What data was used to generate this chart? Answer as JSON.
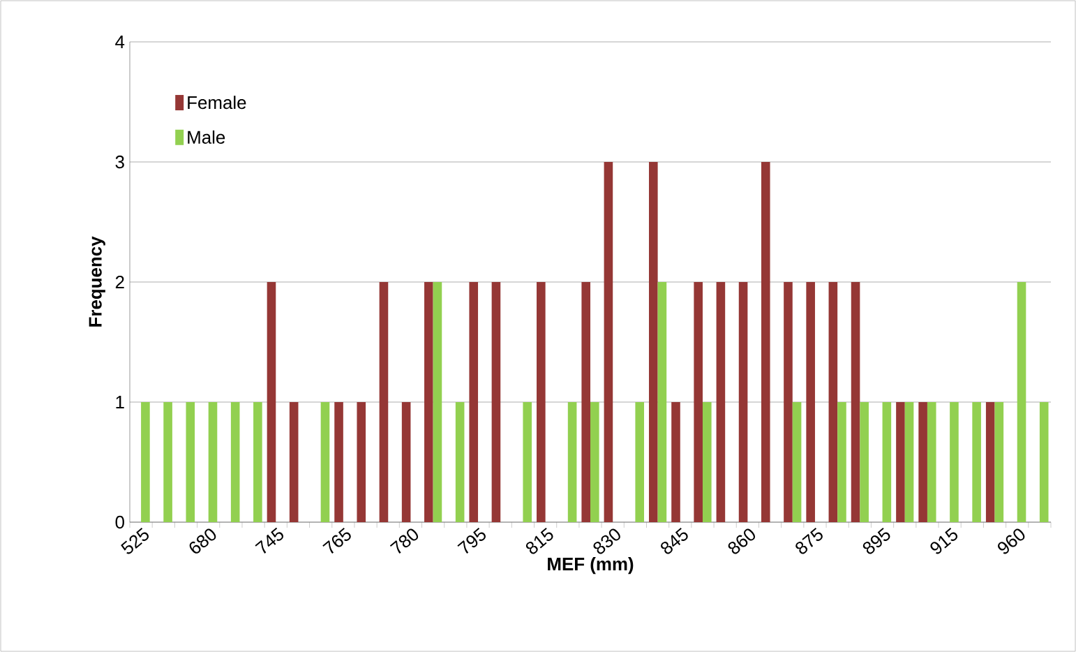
{
  "chart_data": {
    "type": "bar",
    "xlabel": "MEF (mm)",
    "ylabel": "Frequency",
    "categories": [
      "525",
      null,
      null,
      "680",
      null,
      null,
      "745",
      null,
      null,
      "765",
      null,
      null,
      "780",
      null,
      null,
      "795",
      null,
      null,
      "815",
      null,
      null,
      "830",
      null,
      null,
      "845",
      null,
      null,
      "860",
      null,
      null,
      "875",
      null,
      null,
      "895",
      null,
      null,
      "915",
      null,
      null,
      "960",
      null
    ],
    "series": [
      {
        "name": "Female",
        "color": "#953735",
        "values": [
          0,
          0,
          0,
          0,
          0,
          0,
          2,
          1,
          0,
          1,
          1,
          2,
          1,
          2,
          0,
          2,
          2,
          0,
          2,
          0,
          2,
          3,
          0,
          3,
          1,
          2,
          2,
          2,
          3,
          2,
          2,
          2,
          2,
          0,
          1,
          1,
          0,
          0,
          1,
          0,
          0
        ]
      },
      {
        "name": "Male",
        "color": "#92d050",
        "values": [
          1,
          1,
          1,
          1,
          1,
          1,
          0,
          0,
          1,
          0,
          0,
          0,
          0,
          2,
          1,
          0,
          0,
          1,
          0,
          1,
          1,
          0,
          1,
          2,
          0,
          1,
          0,
          0,
          0,
          1,
          0,
          1,
          1,
          1,
          1,
          1,
          1,
          1,
          1,
          2,
          1
        ]
      }
    ],
    "ylim": [
      0,
      4
    ],
    "yticks": [
      0,
      1,
      2,
      3,
      4
    ],
    "grid": "y",
    "legend": "top left"
  }
}
